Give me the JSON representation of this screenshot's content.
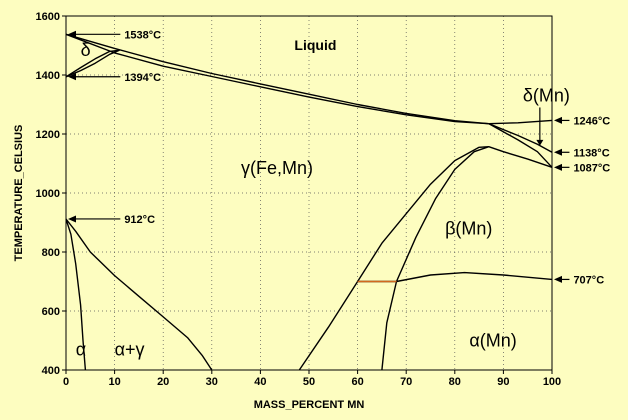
{
  "chart_data": {
    "type": "line",
    "xlabel": "MASS_PERCENT MN",
    "ylabel": "TEMPERATURE_CELSIUS",
    "xlim": [
      0,
      100
    ],
    "ylim": [
      400,
      1600
    ],
    "x_ticks": [
      "0",
      "10",
      "20",
      "30",
      "40",
      "50",
      "60",
      "70",
      "80",
      "90",
      "100"
    ],
    "y_ticks": [
      "400",
      "600",
      "800",
      "1000",
      "1200",
      "1400",
      "1600"
    ],
    "grid": "dotted",
    "colors": {
      "background": "#fdfdc0",
      "line": "#000000",
      "highlight": "#d2691e"
    },
    "phase_labels": [
      {
        "text": "Liquid",
        "x": 47,
        "y": 1485,
        "size": "medium"
      },
      {
        "text": "δ",
        "x": 3,
        "y": 1465,
        "size": "large"
      },
      {
        "text": "δ(Mn)",
        "x": 94,
        "y": 1310,
        "size": "large"
      },
      {
        "text": "γ(Fe,Mn)",
        "x": 36,
        "y": 1065,
        "size": "large"
      },
      {
        "text": "β(Mn)",
        "x": 78,
        "y": 860,
        "size": "large"
      },
      {
        "text": "α(Mn)",
        "x": 83,
        "y": 480,
        "size": "large"
      },
      {
        "text": "α",
        "x": 2,
        "y": 450,
        "size": "large"
      },
      {
        "text": "α+γ",
        "x": 10,
        "y": 450,
        "size": "large"
      }
    ],
    "annotations": [
      {
        "text": "1538°C",
        "point": [
          0,
          1538
        ],
        "label_x": 12,
        "label_y": 1538,
        "side": "right-label"
      },
      {
        "text": "1394°C",
        "point": [
          0,
          1394
        ],
        "label_x": 12,
        "label_y": 1394,
        "side": "right-label"
      },
      {
        "text": "912°C",
        "point": [
          0,
          912
        ],
        "label_x": 12,
        "label_y": 912,
        "side": "right-label"
      },
      {
        "text": "1246°C",
        "point": [
          100,
          1246
        ],
        "label_x": 104,
        "label_y": 1246,
        "side": "outside-right"
      },
      {
        "text": "1138°C",
        "point": [
          100,
          1138
        ],
        "label_x": 104,
        "label_y": 1138,
        "side": "outside-right"
      },
      {
        "text": "1087°C",
        "point": [
          100,
          1087
        ],
        "label_x": 104,
        "label_y": 1087,
        "side": "outside-right"
      },
      {
        "text": "707°C",
        "point": [
          100,
          707
        ],
        "label_x": 104,
        "label_y": 707,
        "side": "outside-right"
      }
    ],
    "series": [
      {
        "points": [
          [
            0,
            1538
          ],
          [
            10,
            1490
          ],
          [
            20,
            1445
          ],
          [
            30,
            1405
          ],
          [
            40,
            1370
          ],
          [
            50,
            1335
          ],
          [
            60,
            1300
          ],
          [
            70,
            1270
          ],
          [
            80,
            1245
          ],
          [
            87,
            1235
          ]
        ]
      },
      {
        "points": [
          [
            0,
            1538
          ],
          [
            10,
            1475
          ],
          [
            20,
            1430
          ],
          [
            30,
            1395
          ],
          [
            40,
            1360
          ],
          [
            50,
            1325
          ],
          [
            60,
            1293
          ],
          [
            70,
            1265
          ],
          [
            80,
            1242
          ],
          [
            87,
            1235
          ]
        ]
      },
      {
        "points": [
          [
            87,
            1235
          ],
          [
            93,
            1195
          ],
          [
            97,
            1165
          ],
          [
            100,
            1138
          ]
        ]
      },
      {
        "points": [
          [
            87,
            1235
          ],
          [
            93,
            1180
          ],
          [
            97,
            1140
          ],
          [
            100,
            1087
          ]
        ]
      },
      {
        "points": [
          [
            87,
            1235
          ],
          [
            93,
            1238
          ],
          [
            100,
            1246
          ]
        ]
      },
      {
        "points": [
          [
            0,
            1394
          ],
          [
            3,
            1425
          ],
          [
            6,
            1455
          ],
          [
            9,
            1480
          ],
          [
            11,
            1484
          ]
        ]
      },
      {
        "points": [
          [
            0,
            1394
          ],
          [
            3,
            1415
          ],
          [
            6,
            1440
          ],
          [
            9,
            1470
          ],
          [
            11,
            1484
          ]
        ]
      },
      {
        "points": [
          [
            0,
            912
          ],
          [
            2,
            870
          ],
          [
            5,
            800
          ],
          [
            10,
            720
          ],
          [
            15,
            650
          ],
          [
            20,
            580
          ],
          [
            25,
            510
          ],
          [
            28,
            450
          ],
          [
            30,
            400
          ]
        ]
      },
      {
        "points": [
          [
            0,
            912
          ],
          [
            1,
            860
          ],
          [
            2,
            760
          ],
          [
            3,
            620
          ],
          [
            3.5,
            500
          ],
          [
            4,
            400
          ]
        ]
      },
      {
        "points": [
          [
            48,
            400
          ],
          [
            54,
            545
          ],
          [
            60,
            700
          ],
          [
            65,
            830
          ],
          [
            70,
            930
          ],
          [
            75,
            1030
          ],
          [
            80,
            1110
          ],
          [
            85,
            1155
          ],
          [
            87,
            1157
          ],
          [
            90,
            1140
          ],
          [
            95,
            1115
          ],
          [
            100,
            1087
          ]
        ]
      },
      {
        "points": [
          [
            65,
            400
          ],
          [
            66,
            560
          ],
          [
            68,
            700
          ],
          [
            72,
            850
          ],
          [
            76,
            980
          ],
          [
            80,
            1080
          ],
          [
            84,
            1140
          ],
          [
            87,
            1157
          ]
        ]
      },
      {
        "points": [
          [
            60,
            700
          ],
          [
            68,
            700
          ],
          [
            75,
            722
          ],
          [
            82,
            730
          ],
          [
            90,
            722
          ],
          [
            100,
            707
          ]
        ]
      },
      {
        "points": [
          [
            60,
            700
          ],
          [
            68,
            700
          ]
        ],
        "color": "#d2691e"
      }
    ]
  }
}
